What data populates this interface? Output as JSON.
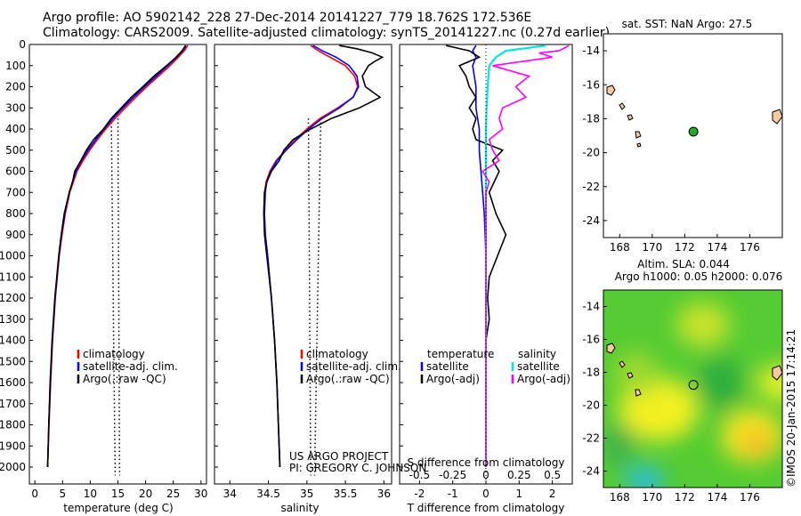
{
  "header": {
    "title_line1": "Argo profile: AO 5902142_228 27-Dec-2014 20141227_779 18.762S 172.536E",
    "title_line2": "Climatology: CARS2009. Satellite-adjusted climatology: synTS_20141227.nc (0.27d earlier)"
  },
  "colors": {
    "climatology": "#ff0000",
    "satellite": "#0000ff",
    "argo": "#000000",
    "temp_sat_diff": "#0000ff",
    "sal_sat_diff": "#00e5e5",
    "sal_argo_diff": "#ff00ff",
    "argo_marker": "#22aa22"
  },
  "chart_data": [
    {
      "type": "line",
      "id": "temperature",
      "xlabel": "temperature (deg C)",
      "ylabel": "",
      "xlim": [
        -1,
        31
      ],
      "xticks": [
        0,
        5,
        10,
        15,
        20,
        25,
        30
      ],
      "ylim": [
        2080,
        0
      ],
      "yticks": [
        0,
        100,
        200,
        300,
        400,
        500,
        600,
        700,
        800,
        900,
        1000,
        1100,
        1200,
        1300,
        1400,
        1500,
        1600,
        1700,
        1800,
        1900,
        2000
      ],
      "legend": [
        "climatology",
        "satellite-adj. clim.",
        "Argo(.:raw -QC)"
      ],
      "series": [
        {
          "name": "climatology",
          "depth": [
            5,
            30,
            60,
            100,
            150,
            200,
            250,
            300,
            350,
            400,
            450,
            500,
            550,
            600,
            700,
            800,
            900,
            1000,
            1200,
            1400,
            1600,
            1800,
            2000
          ],
          "values": [
            27.6,
            27.0,
            25.9,
            24.4,
            22.3,
            20.2,
            18.2,
            16.3,
            14.5,
            12.8,
            11.3,
            9.9,
            8.7,
            7.6,
            6.3,
            5.5,
            4.9,
            4.4,
            3.7,
            3.2,
            2.85,
            2.55,
            2.3
          ]
        },
        {
          "name": "satellite-adj. clim.",
          "depth": [
            5,
            30,
            60,
            100,
            150,
            200,
            250,
            300,
            350,
            400,
            450,
            500,
            550,
            600,
            700,
            800,
            900,
            1000,
            1200,
            1400,
            1600,
            1800,
            2000
          ],
          "values": [
            27.3,
            26.7,
            25.6,
            24.0,
            21.9,
            19.8,
            17.8,
            15.9,
            14.1,
            12.5,
            11.0,
            9.6,
            8.4,
            7.4,
            6.2,
            5.4,
            4.8,
            4.35,
            3.65,
            3.15,
            2.8,
            2.5,
            2.3
          ]
        },
        {
          "name": "Argo(.:raw -QC)",
          "depth": [
            5,
            30,
            60,
            100,
            150,
            200,
            250,
            300,
            350,
            400,
            450,
            500,
            550,
            600,
            650,
            700,
            800,
            900,
            1000,
            1200,
            1400,
            1600,
            1800,
            2000
          ],
          "values": [
            27.2,
            26.6,
            25.5,
            23.8,
            21.5,
            19.5,
            17.4,
            15.6,
            13.8,
            12.4,
            10.6,
            9.3,
            8.3,
            7.2,
            6.8,
            6.2,
            5.3,
            4.75,
            4.3,
            3.6,
            3.1,
            2.75,
            2.5,
            2.3
          ]
        }
      ]
    },
    {
      "type": "line",
      "id": "salinity",
      "xlabel": "salinity",
      "ylabel": "",
      "xlim": [
        33.8,
        36.1
      ],
      "xticks": [
        34,
        34.5,
        35,
        35.5,
        36
      ],
      "ylim": [
        2080,
        0
      ],
      "legend": [
        "climatology",
        "satellite-adj. clim.",
        "Argo(.:raw -QC)"
      ],
      "annotation_line1": "US ARGO PROJECT",
      "annotation_line2": "PI: GREGORY C. JOHNSON",
      "series": [
        {
          "name": "climatology",
          "depth": [
            5,
            30,
            60,
            100,
            150,
            200,
            250,
            300,
            350,
            400,
            450,
            500,
            550,
            600,
            650,
            700,
            800,
            900,
            1000,
            1200,
            1400,
            1600,
            1800,
            2000
          ],
          "values": [
            35.05,
            35.15,
            35.3,
            35.5,
            35.62,
            35.66,
            35.6,
            35.4,
            35.17,
            35.0,
            34.85,
            34.72,
            34.6,
            34.52,
            34.47,
            34.45,
            34.44,
            34.46,
            34.49,
            34.54,
            34.58,
            34.61,
            34.63,
            34.65
          ]
        },
        {
          "name": "satellite-adj. clim.",
          "depth": [
            5,
            30,
            60,
            100,
            150,
            200,
            250,
            300,
            350,
            400,
            450,
            500,
            550,
            600,
            650,
            700,
            800,
            900,
            1000,
            1200,
            1400,
            1600,
            1800,
            2000
          ],
          "values": [
            35.08,
            35.2,
            35.38,
            35.55,
            35.65,
            35.67,
            35.6,
            35.42,
            35.2,
            35.02,
            34.87,
            34.73,
            34.61,
            34.53,
            34.48,
            34.46,
            34.45,
            34.46,
            34.49,
            34.54,
            34.58,
            34.61,
            34.63,
            34.65
          ]
        },
        {
          "name": "Argo(.:raw -QC)",
          "depth": [
            5,
            20,
            40,
            60,
            80,
            100,
            150,
            200,
            250,
            300,
            350,
            400,
            450,
            500,
            550,
            600,
            650,
            700,
            800,
            900,
            1000,
            1200,
            1400,
            1600,
            1800,
            2000
          ],
          "values": [
            35.42,
            35.65,
            35.85,
            35.98,
            35.88,
            35.8,
            35.72,
            35.76,
            35.95,
            35.68,
            35.32,
            35.05,
            34.82,
            34.7,
            34.64,
            34.54,
            34.48,
            34.45,
            34.44,
            34.45,
            34.48,
            34.54,
            34.58,
            34.61,
            34.63,
            34.65
          ]
        }
      ]
    },
    {
      "type": "line",
      "id": "difference",
      "xlabel": "T difference from climatology",
      "xlabel_top": "S difference from climatology",
      "xlim": [
        -2.6,
        2.6
      ],
      "xticks": [
        -2,
        -1,
        0,
        1,
        2
      ],
      "xticks_top": [
        -0.5,
        -0.25,
        0,
        0.25,
        0.5
      ],
      "ylim": [
        2080,
        0
      ],
      "legend_temperature_title": "temperature",
      "legend_temperature": [
        "satellite",
        "Argo(-adj)"
      ],
      "legend_salinity_title": "salinity",
      "legend_salinity": [
        "satellite",
        "Argo(-adj)"
      ],
      "series": [
        {
          "name": "satellite",
          "depth": [
            5,
            30,
            60,
            100,
            200,
            300,
            400,
            500,
            600,
            700,
            800,
            1000,
            1200,
            1400,
            1600,
            1800,
            2000
          ],
          "values": [
            -0.3,
            -0.4,
            -0.3,
            -0.4,
            -0.3,
            -0.3,
            -0.2,
            -0.2,
            -0.15,
            -0.1,
            -0.05,
            0,
            0,
            0,
            0,
            0,
            0
          ]
        },
        {
          "name": "Argo(-adj)",
          "depth": [
            5,
            30,
            60,
            100,
            150,
            200,
            250,
            300,
            350,
            400,
            450,
            500,
            550,
            600,
            700,
            800,
            900,
            1000,
            1100,
            1200,
            1300,
            1400,
            1600,
            1800,
            2000
          ],
          "values": [
            -1.2,
            -0.5,
            -0.2,
            -0.8,
            -0.6,
            -0.5,
            -0.3,
            -0.5,
            -0.3,
            -0.4,
            -0.3,
            0.5,
            0.2,
            0.4,
            0.1,
            0.3,
            0.6,
            0.35,
            0.1,
            0.05,
            0.1,
            0,
            0,
            0,
            0
          ]
        },
        {
          "name": "satellite",
          "depth": [
            5,
            30,
            60,
            100,
            200,
            300,
            400,
            500,
            600,
            700,
            800,
            1000,
            1200,
            1400,
            1600,
            1800,
            2000
          ],
          "values": [
            1.8,
            0.6,
            0.3,
            0.1,
            0.05,
            0.02,
            0,
            0,
            0,
            0,
            0,
            0,
            0,
            0,
            0,
            0,
            0
          ]
        },
        {
          "name": "Argo(-adj)",
          "depth": [
            5,
            30,
            40,
            60,
            100,
            150,
            200,
            250,
            300,
            350,
            400,
            450,
            500,
            550,
            600,
            650,
            700,
            800,
            900,
            1000,
            1200,
            1400,
            1600,
            1800,
            2000
          ],
          "values": [
            2.5,
            2.2,
            1.6,
            2.0,
            0.2,
            1.3,
            0.9,
            1.2,
            0.5,
            0.4,
            0.5,
            0.1,
            0.2,
            0.4,
            -0.1,
            0.1,
            0,
            0,
            0,
            0,
            0,
            0,
            0,
            0,
            0
          ]
        }
      ]
    },
    {
      "type": "scatter",
      "id": "sst_map",
      "title": "sat. SST: NaN Argo: 27.5",
      "xlim": [
        167,
        178
      ],
      "xticks": [
        168,
        170,
        172,
        174,
        176
      ],
      "ylim": [
        -25,
        -13
      ],
      "yticks": [
        -14,
        -16,
        -18,
        -20,
        -22,
        -24
      ],
      "point": {
        "lon": 172.536,
        "lat": -18.762
      }
    },
    {
      "type": "heatmap",
      "id": "sla_map",
      "title_line1": "Altim. SLA: 0.044",
      "title_line2": "Argo h1000: 0.05 h2000: 0.076",
      "xlim": [
        167,
        178
      ],
      "xticks": [
        168,
        170,
        172,
        174,
        176
      ],
      "ylim": [
        -25,
        -13
      ],
      "yticks": [
        -14,
        -16,
        -18,
        -20,
        -22,
        -24
      ],
      "point": {
        "lon": 172.536,
        "lat": -18.762
      }
    }
  ],
  "footer": {
    "credit": "©IMOS 20-Jan-2015 17:14:21"
  }
}
